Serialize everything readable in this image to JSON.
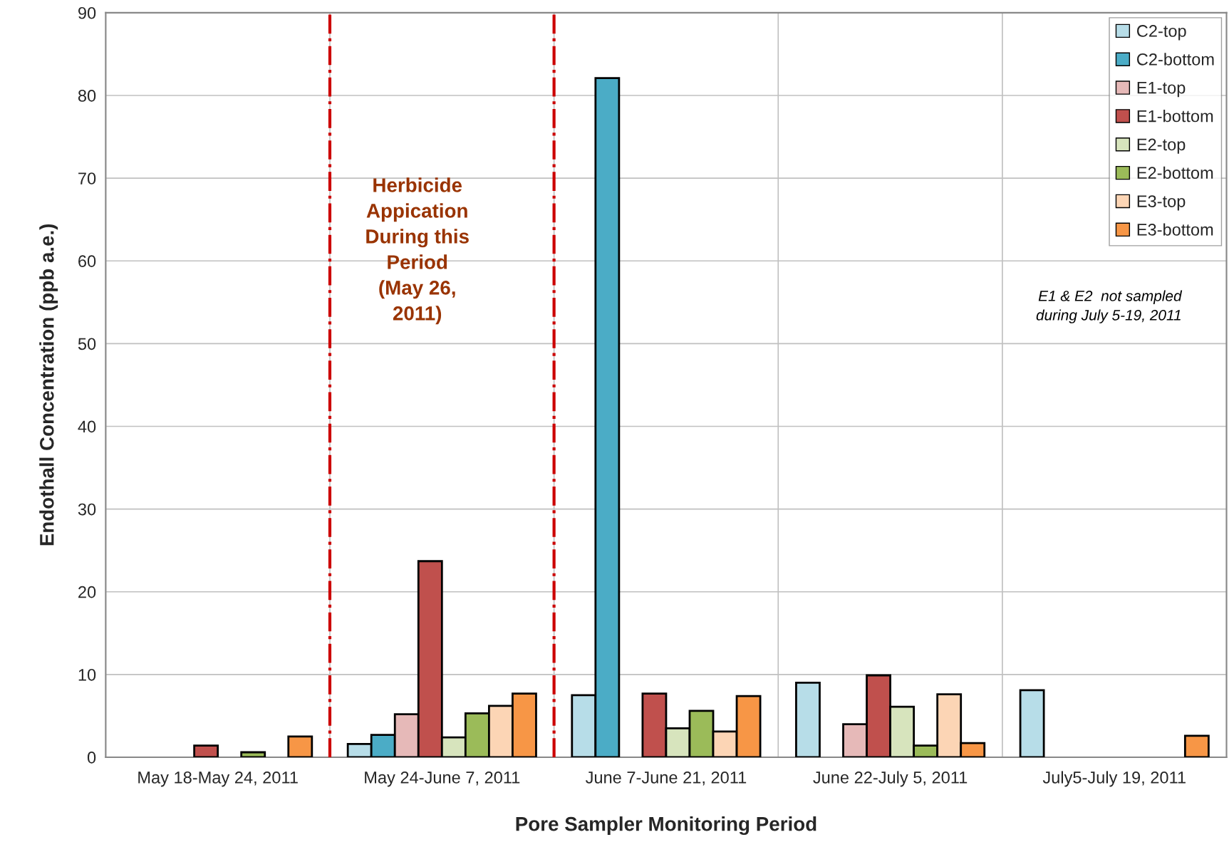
{
  "chart_data": {
    "type": "bar",
    "xlabel": "Pore Sampler Monitoring Period",
    "ylabel": "Endothall Concentration (ppb a.e.)",
    "categories": [
      "May 18-May 24, 2011",
      "May 24-June 7, 2011",
      "June 7-June 21, 2011",
      "June 22-July 5, 2011",
      "July5-July 19, 2011"
    ],
    "series": [
      {
        "name": "C2-top",
        "color": "#b7dde8",
        "values": [
          null,
          1.6,
          7.5,
          9.0,
          8.1
        ]
      },
      {
        "name": "C2-bottom",
        "color": "#4bacc6",
        "values": [
          null,
          2.7,
          82.1,
          null,
          null
        ]
      },
      {
        "name": "E1-top",
        "color": "#e6b9b8",
        "values": [
          null,
          5.2,
          null,
          4.0,
          null
        ]
      },
      {
        "name": "E1-bottom",
        "color": "#c0504d",
        "values": [
          1.4,
          23.7,
          7.7,
          9.9,
          null
        ]
      },
      {
        "name": "E2-top",
        "color": "#d7e4bd",
        "values": [
          null,
          2.4,
          3.5,
          6.1,
          null
        ]
      },
      {
        "name": "E2-bottom",
        "color": "#9bbb59",
        "values": [
          0.6,
          5.3,
          5.6,
          1.4,
          null
        ]
      },
      {
        "name": "E3-top",
        "color": "#fcd5b5",
        "values": [
          null,
          6.2,
          3.1,
          7.6,
          null
        ]
      },
      {
        "name": "E3-bottom",
        "color": "#f79646",
        "values": [
          2.5,
          7.7,
          7.4,
          1.7,
          2.6
        ]
      }
    ],
    "ylim": [
      0,
      90
    ],
    "yticks": [
      0,
      10,
      20,
      30,
      40,
      50,
      60,
      70,
      80,
      90
    ],
    "grid": true,
    "legend": "top right",
    "annotations": [
      "Herbicide\nAppication\nDuring this\nPeriod\n(May 26,\n2011)",
      "E1 & E2  not sampled\nduring July 5-19, 2011"
    ]
  }
}
